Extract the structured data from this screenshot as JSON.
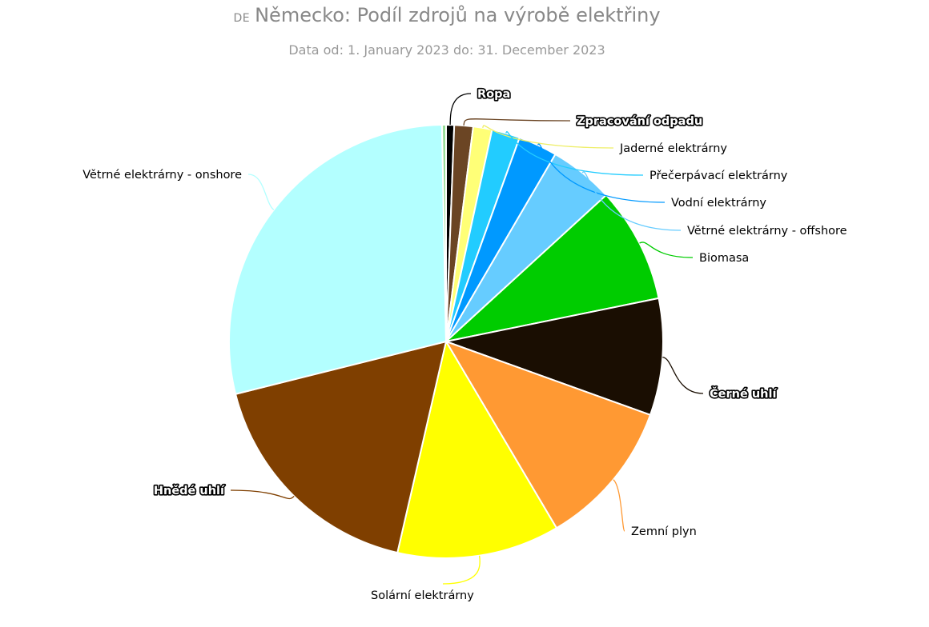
{
  "chart_data": {
    "type": "pie",
    "title_prefix": "DE",
    "title": "Německo: Podíl zdrojů na výrobě elektřiny",
    "subtitle": "Data od: 1. January 2023 do: 31. December 2023",
    "unit": "%",
    "start_angle_deg": 0,
    "slices": [
      {
        "label": "Ropa",
        "value": 0.6,
        "color": "#000000",
        "outlined": true
      },
      {
        "label": "Zpracování odpadu",
        "value": 1.4,
        "color": "#6b4524",
        "outlined": true
      },
      {
        "label": "Jaderné elektrárny",
        "value": 1.4,
        "color": "#ffff77",
        "outlined": false
      },
      {
        "label": "Přečerpávací elektrárny",
        "value": 2.1,
        "color": "#22ccff",
        "outlined": false
      },
      {
        "label": "Vodní elektrárny",
        "value": 2.9,
        "color": "#0099ff",
        "outlined": false
      },
      {
        "label": "Větrné elektrárny - offshore",
        "value": 4.8,
        "color": "#66ccff",
        "outlined": false
      },
      {
        "label": "Biomasa",
        "value": 8.6,
        "color": "#00cc00",
        "outlined": false
      },
      {
        "label": "Černé uhlí",
        "value": 8.7,
        "color": "#1a0e02",
        "outlined": true
      },
      {
        "label": "Zemní plyn",
        "value": 11.0,
        "color": "#ff9933",
        "outlined": false
      },
      {
        "label": "Solární elektrárny",
        "value": 12.1,
        "color": "#ffff00",
        "outlined": false
      },
      {
        "label": "Hnědé uhlí",
        "value": 17.5,
        "color": "#7f3f00",
        "outlined": true
      },
      {
        "label": "Větrné elektrárny - onshore",
        "value": 28.6,
        "color": "#b3ffff",
        "outlined": false
      },
      {
        "label": "",
        "value": 0.3,
        "color": "#99dd99",
        "outlined": false
      }
    ]
  }
}
